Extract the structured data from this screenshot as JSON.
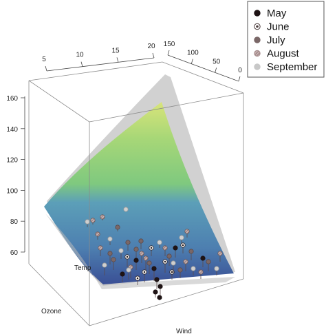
{
  "chart_data": {
    "type": "scatter",
    "subtype": "3d-scatter-with-fitted-surfaces",
    "xlabel": "Temp",
    "ylabel": "Wind",
    "zlabel": "Ozone",
    "x_ticks": [
      "5",
      "10",
      "15",
      "20"
    ],
    "y_ticks": [
      "150",
      "100",
      "50",
      "0"
    ],
    "z_ticks": [
      "160",
      "140",
      "120",
      "100",
      "80",
      "60"
    ],
    "surface_palette": [
      "#d8e47a",
      "#a7d777",
      "#7fc97f",
      "#5c9fb8",
      "#4d7fb0",
      "#3a4f95"
    ],
    "confidence_surface_color": "#bdbdbd",
    "series": [
      {
        "name": "May",
        "color": "#1e1314",
        "marker": "filled-circle"
      },
      {
        "name": "June",
        "color": "#4a3b3b",
        "marker": "open-circle"
      },
      {
        "name": "July",
        "color": "#7a6767",
        "marker": "filled-circle"
      },
      {
        "name": "August",
        "color": "#a58b8b",
        "marker": "hatched-circle"
      },
      {
        "name": "September",
        "color": "#c8c8c8",
        "marker": "filled-circle"
      }
    ],
    "legend_position": "top-right",
    "grid": false
  }
}
